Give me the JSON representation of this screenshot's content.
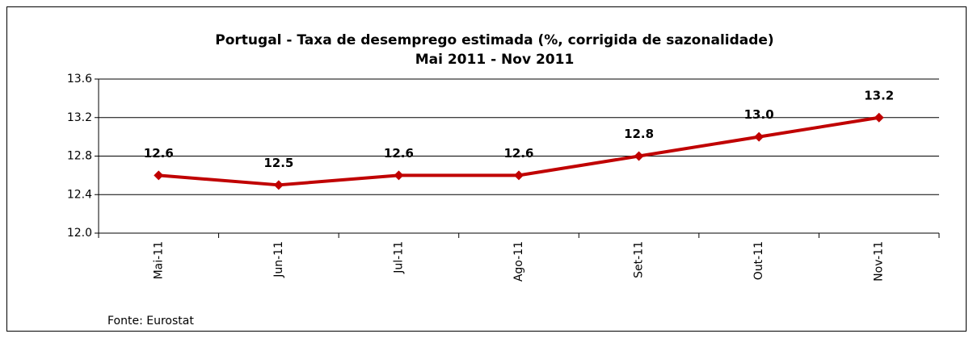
{
  "chart_data": {
    "type": "line",
    "title": "Portugal - Taxa de desemprego estimada (%, corrigida de sazonalidade)",
    "subtitle": "Mai 2011 - Nov 2011",
    "categories": [
      "Mai-11",
      "Jun-11",
      "Jul-11",
      "Ago-11",
      "Set-11",
      "Out-11",
      "Nov-11"
    ],
    "series": [
      {
        "name": "Taxa de desemprego",
        "color": "#c00000",
        "values": [
          12.6,
          12.5,
          12.6,
          12.6,
          12.8,
          13.0,
          13.2
        ],
        "value_labels": [
          "12.6",
          "12.5",
          "12.6",
          "12.6",
          "12.8",
          "13.0",
          "13.2"
        ]
      }
    ],
    "ylim": [
      12.0,
      13.6
    ],
    "yticks": [
      {
        "value": 12.0,
        "label": "12.0"
      },
      12.4,
      12.8,
      13.2,
      13.6
    ],
    "grid": true,
    "source": "Fonte: Eurostat"
  }
}
